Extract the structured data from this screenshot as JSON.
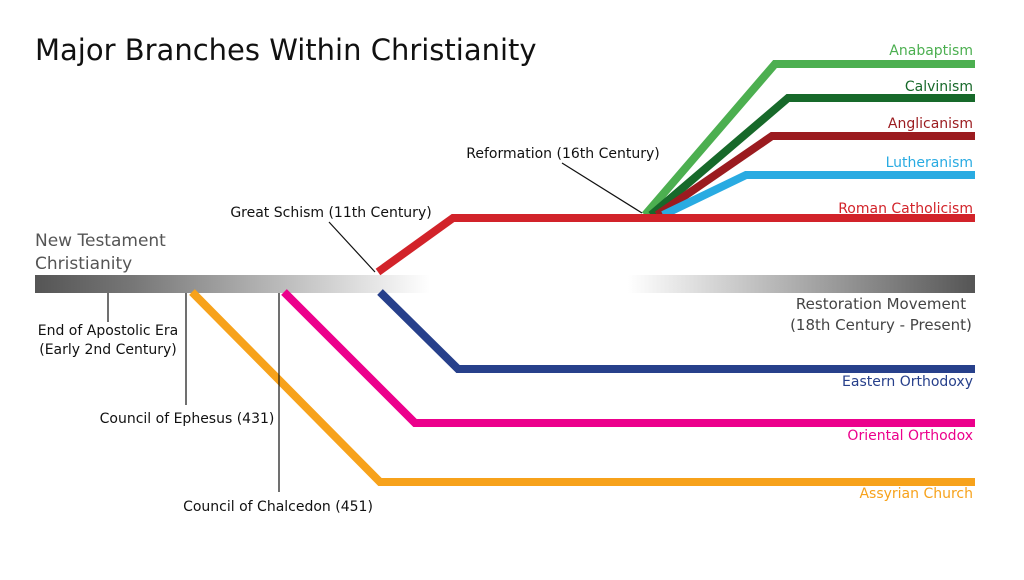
{
  "header": {
    "title": "Major Branches Within Christianity"
  },
  "origin": {
    "lines": [
      "New Testament",
      "Christianity"
    ]
  },
  "branches": [
    {
      "label": "Anabaptism"
    },
    {
      "label": "Calvinism"
    },
    {
      "label": "Anglicanism"
    },
    {
      "label": "Lutheranism"
    },
    {
      "label": "Roman Catholicism"
    },
    {
      "label": "Eastern Orthodoxy"
    },
    {
      "label": "Oriental Orthodox"
    },
    {
      "label": "Assyrian Church"
    }
  ],
  "events": [
    {
      "lines": [
        "End of Apostolic Era",
        "(Early 2nd Century)"
      ]
    },
    {
      "lines": [
        "Council of Ephesus (431)"
      ]
    },
    {
      "lines": [
        "Council of Chalcedon (451)"
      ]
    },
    {
      "lines": [
        "Great Schism (11th Century)"
      ]
    },
    {
      "lines": [
        "Reformation (16th Century)"
      ]
    },
    {
      "lines": [
        "Restoration Movement",
        "(18th Century - Present)"
      ]
    }
  ]
}
